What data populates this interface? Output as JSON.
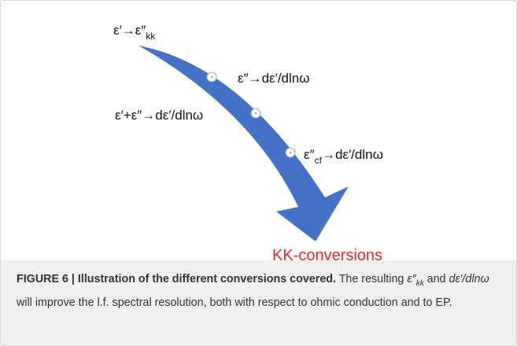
{
  "figure": {
    "labels": [
      {
        "pre": "ε′→ε″",
        "sub": "kk"
      },
      {
        "pre": "ε″→dε′/dlnω"
      },
      {
        "pre": "ε′+ε″→dε′/dlnω"
      },
      {
        "pre": "ε″",
        "sub": "cf",
        "post": "→dε′/dlnω"
      }
    ],
    "result": "KK-conversions"
  },
  "caption": {
    "label": "FIGURE 6 | Illustration of the different conversions covered.",
    "parts": [
      " The resulting ",
      "ε″",
      "kk",
      " and ",
      "dε′/dlnω",
      " will improve the l.f. spectral resolution, both with respect to ohmic conduction and to EP."
    ]
  }
}
